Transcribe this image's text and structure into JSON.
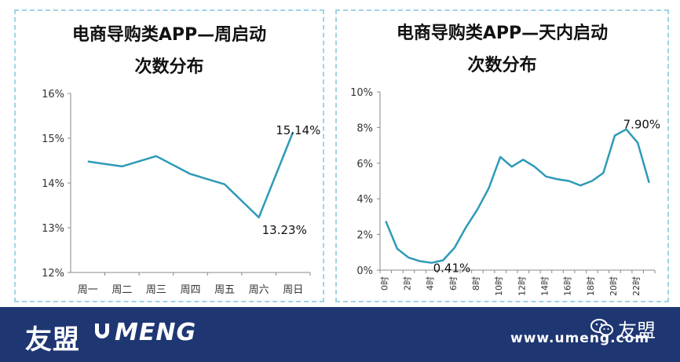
{
  "charts": [
    {
      "title_line1": "电商导购类APP—周启动",
      "title_line2": "次数分布"
    },
    {
      "title_line1": "电商导购类APP—天内启动",
      "title_line2": "次数分布"
    }
  ],
  "chart_data": [
    {
      "type": "line",
      "title": "电商导购类APP—周启动次数分布",
      "categories": [
        "周一",
        "周二",
        "周三",
        "周四",
        "周五",
        "周六",
        "周日"
      ],
      "values": [
        14.48,
        14.37,
        14.6,
        14.2,
        13.97,
        13.23,
        15.14
      ],
      "ylim": [
        12,
        16
      ],
      "yticks": [
        "12%",
        "13%",
        "14%",
        "15%",
        "16%"
      ],
      "annotations": [
        {
          "category": "周六",
          "text": "13.23%"
        },
        {
          "category": "周日",
          "text": "15.14%"
        }
      ],
      "color": "#2e9ab8",
      "grid": false
    },
    {
      "type": "line",
      "title": "电商导购类APP—天内启动次数分布",
      "x": [
        0,
        1,
        2,
        3,
        4,
        5,
        6,
        7,
        8,
        9,
        10,
        11,
        12,
        13,
        14,
        15,
        16,
        17,
        18,
        19,
        20,
        21,
        22,
        23
      ],
      "values": [
        2.75,
        1.2,
        0.7,
        0.5,
        0.41,
        0.55,
        1.25,
        2.4,
        3.4,
        4.6,
        6.35,
        5.8,
        6.2,
        5.8,
        5.25,
        5.1,
        5.0,
        4.75,
        5.0,
        5.45,
        7.55,
        7.9,
        7.15,
        4.9
      ],
      "xticks": [
        "0时",
        "2时",
        "4时",
        "6时",
        "8时",
        "10时",
        "12时",
        "14时",
        "16时",
        "18时",
        "20时",
        "22时"
      ],
      "ylim": [
        0,
        10
      ],
      "yticks": [
        "0%",
        "2%",
        "4%",
        "6%",
        "8%",
        "10%"
      ],
      "annotations": [
        {
          "x": 4,
          "text": "0.41%"
        },
        {
          "x": 21,
          "text": "7.90%"
        }
      ],
      "color": "#2e9ab8",
      "grid": false
    }
  ],
  "footer": {
    "logo_cn": "友盟",
    "logo_en": "MENG",
    "website": "www.umeng.com",
    "wechat_label": "友盟",
    "icons": [
      "umeng-logo-icon",
      "wechat-icon"
    ],
    "background": "#1e3773"
  }
}
